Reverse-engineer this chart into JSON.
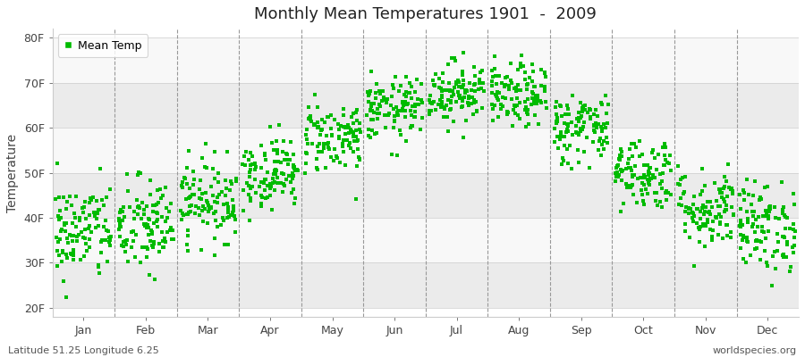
{
  "title": "Monthly Mean Temperatures 1901  -  2009",
  "ylabel": "Temperature",
  "xlabel_labels": [
    "Jan",
    "Feb",
    "Mar",
    "Apr",
    "May",
    "Jun",
    "Jul",
    "Aug",
    "Sep",
    "Oct",
    "Nov",
    "Dec"
  ],
  "ytick_labels": [
    "20F",
    "30F",
    "40F",
    "50F",
    "60F",
    "70F",
    "80F"
  ],
  "ytick_values": [
    20,
    30,
    40,
    50,
    60,
    70,
    80
  ],
  "ylim": [
    18,
    82
  ],
  "legend_label": "Mean Temp",
  "marker_color": "#00bb00",
  "bottom_left": "Latitude 51.25 Longitude 6.25",
  "bottom_right": "worldspecies.org",
  "bg_color": "#ffffff",
  "band_colors": [
    "#ebebeb",
    "#f8f8f8"
  ],
  "monthly_means_F": [
    37,
    38,
    44,
    50,
    58,
    64,
    68,
    67,
    60,
    50,
    42,
    38
  ],
  "monthly_stds_F": [
    5.5,
    5.5,
    4.5,
    4.0,
    4.0,
    3.5,
    3.5,
    3.5,
    4.0,
    4.0,
    4.5,
    5.0
  ],
  "n_years": 109,
  "seed": 42
}
